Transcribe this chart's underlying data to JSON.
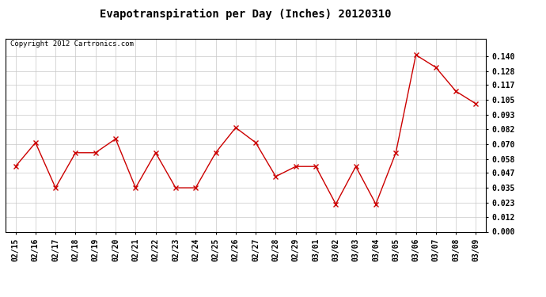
{
  "title": "Evapotranspiration per Day (Inches) 20120310",
  "copyright": "Copyright 2012 Cartronics.com",
  "dates": [
    "02/15",
    "02/16",
    "02/17",
    "02/18",
    "02/19",
    "02/20",
    "02/21",
    "02/22",
    "02/23",
    "02/24",
    "02/25",
    "02/26",
    "02/27",
    "02/28",
    "02/29",
    "03/01",
    "03/02",
    "03/03",
    "03/04",
    "03/05",
    "03/06",
    "03/07",
    "03/08",
    "03/09"
  ],
  "values": [
    0.052,
    0.071,
    0.035,
    0.063,
    0.063,
    0.074,
    0.035,
    0.063,
    0.035,
    0.035,
    0.063,
    0.083,
    0.071,
    0.044,
    0.052,
    0.052,
    0.022,
    0.052,
    0.022,
    0.063,
    0.141,
    0.131,
    0.112,
    0.102
  ],
  "line_color": "#cc0000",
  "marker": "x",
  "marker_color": "#cc0000",
  "ylim": [
    0.0,
    0.154
  ],
  "yticks": [
    0.0,
    0.012,
    0.023,
    0.035,
    0.047,
    0.058,
    0.07,
    0.082,
    0.093,
    0.105,
    0.117,
    0.128,
    0.14
  ],
  "background_color": "#ffffff",
  "grid_color": "#c8c8c8",
  "title_fontsize": 10,
  "copyright_fontsize": 6.5,
  "tick_fontsize": 7
}
